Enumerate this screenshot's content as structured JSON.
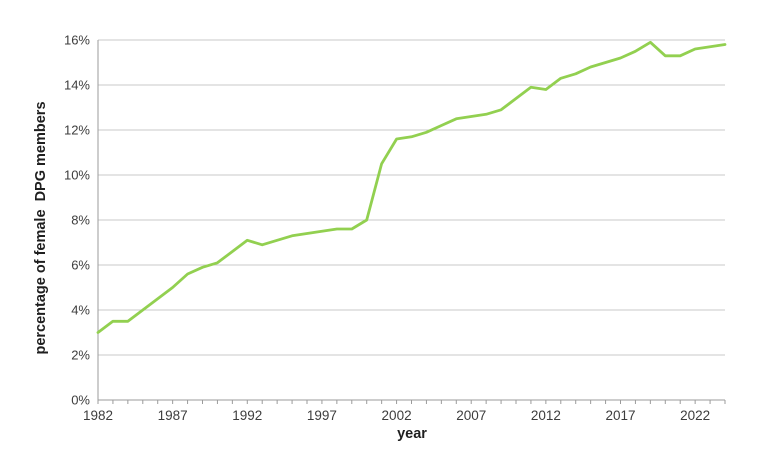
{
  "chart_data": {
    "type": "line",
    "title": "",
    "xlabel": "year",
    "ylabel": "percentage of female  DPG members",
    "x": [
      1982,
      1983,
      1984,
      1985,
      1986,
      1987,
      1988,
      1989,
      1990,
      1991,
      1992,
      1993,
      1994,
      1995,
      1996,
      1997,
      1998,
      1999,
      2000,
      2001,
      2002,
      2003,
      2004,
      2005,
      2006,
      2007,
      2008,
      2009,
      2010,
      2011,
      2012,
      2013,
      2014,
      2015,
      2016,
      2017,
      2018,
      2019,
      2020,
      2021,
      2022,
      2023,
      2024
    ],
    "series": [
      {
        "name": "percentage of female DPG members",
        "values": [
          3.0,
          3.5,
          3.5,
          4.0,
          4.5,
          5.0,
          5.6,
          5.9,
          6.1,
          6.6,
          7.1,
          6.9,
          7.1,
          7.3,
          7.4,
          7.5,
          7.6,
          7.6,
          8.0,
          10.5,
          11.6,
          11.7,
          11.9,
          12.2,
          12.5,
          12.6,
          12.7,
          12.9,
          13.4,
          13.9,
          13.8,
          14.3,
          14.5,
          14.8,
          15.0,
          15.2,
          15.5,
          15.9,
          15.3,
          15.3,
          15.6,
          15.7,
          15.8
        ]
      }
    ],
    "x_tick_labels": [
      "1982",
      "1987",
      "1992",
      "1997",
      "2002",
      "2007",
      "2012",
      "2017",
      "2022"
    ],
    "x_tick_years": [
      1982,
      1987,
      1992,
      1997,
      2002,
      2007,
      2012,
      2017,
      2022
    ],
    "y_tick_labels": [
      "0%",
      "2%",
      "4%",
      "6%",
      "8%",
      "10%",
      "12%",
      "14%",
      "16%"
    ],
    "y_tick_values": [
      0,
      2,
      4,
      6,
      8,
      10,
      12,
      14,
      16
    ],
    "xlim": [
      1982,
      2024
    ],
    "ylim": [
      0,
      16
    ],
    "grid": "horizontal",
    "legend": "none",
    "line_color": "#92d050",
    "grid_color": "#c9c9c9",
    "axis_color": "#9b9b9b",
    "tick_label_color": "#3d3d3d"
  }
}
